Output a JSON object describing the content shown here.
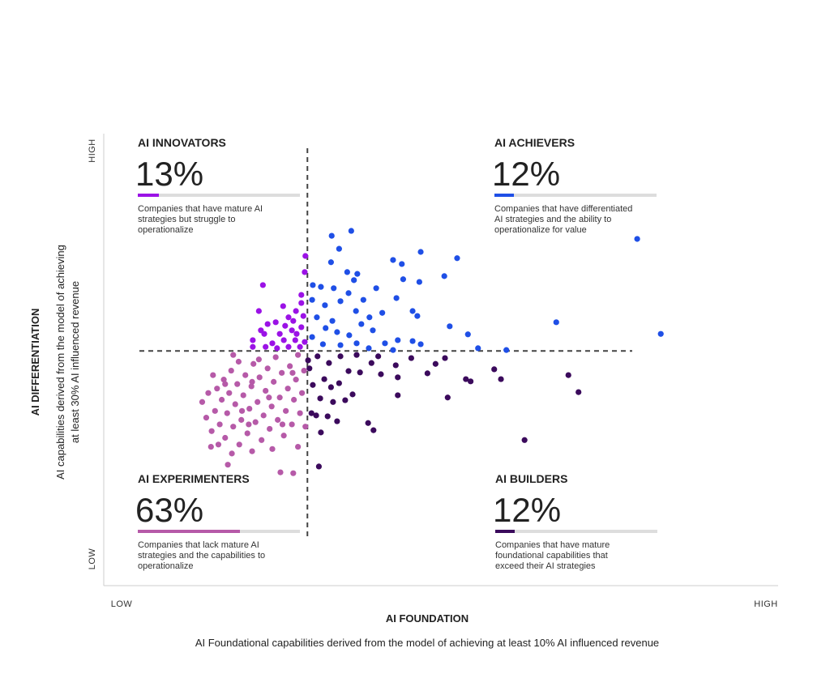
{
  "chart_data": {
    "type": "scatter",
    "y_title": "AI DIFFERENTIATION",
    "y_subtitle": [
      "AI capabilities derived from the model of achieving",
      "at least 30% AI influenced revenue"
    ],
    "x_title": "AI FOUNDATION",
    "x_subtitle": "AI Foundational capabilities derived from the model of achieving at least 10% AI influenced revenue",
    "y_high": "HIGH",
    "y_low": "LOW",
    "x_low": "LOW",
    "x_high": "HIGH",
    "xlim": [
      0,
      100
    ],
    "ylim": [
      0,
      100
    ],
    "quadrant_split": {
      "x": 30.2,
      "y": 52.4
    },
    "series": [
      {
        "name": "AI INNOVATORS",
        "color": "#9b12e6",
        "share": 13,
        "share_label": "13%",
        "description": [
          "Companies that have mature AI",
          "strategies but struggle to",
          "operationalize"
        ],
        "x": [
          29.9,
          29.8,
          23.6,
          29.3,
          23.0,
          26.6,
          28.5,
          29.6,
          27.4,
          25.5,
          23.3,
          22.1,
          23.8,
          26.1,
          27.9,
          29.3,
          25.0,
          26.7,
          28.4,
          29.8,
          22.1,
          24.0,
          25.7,
          27.4,
          29.1,
          29.3,
          28.1,
          24.3,
          26.9,
          28.6
        ],
        "y": [
          73.6,
          70.0,
          67.1,
          64.9,
          61.3,
          62.4,
          61.3,
          60.2,
          59.9,
          58.8,
          57.0,
          54.8,
          56.2,
          56.2,
          57.0,
          57.7,
          54.1,
          54.8,
          54.8,
          54.4,
          53.3,
          53.3,
          53.0,
          53.3,
          53.3,
          63.1,
          59.1,
          58.4,
          58.0,
          56.2
        ]
      },
      {
        "name": "AI ACHIEVERS",
        "color": "#1f4fe6",
        "share": 12,
        "share_label": "12%",
        "description": [
          "Companies that have differentiated",
          "AI strategies and the ability to",
          "operationalize for value"
        ],
        "x": [
          79.1,
          82.6,
          67.1,
          36.7,
          33.8,
          34.9,
          47.0,
          42.9,
          44.2,
          52.4,
          50.5,
          46.8,
          44.4,
          40.4,
          33.7,
          36.1,
          37.6,
          37.1,
          34.1,
          32.2,
          30.9,
          32.8,
          35.1,
          37.4,
          39.4,
          41.3,
          43.4,
          45.8,
          46.5,
          51.3,
          54.0,
          55.5,
          59.7,
          47.0,
          45.8,
          43.6,
          41.7,
          39.9,
          38.2,
          36.4,
          34.6,
          32.9,
          31.6,
          30.9,
          32.5,
          35.1,
          37.5,
          39.3,
          42.9,
          36.3,
          33.9,
          31.0,
          38.5
        ],
        "y": [
          77.4,
          56.2,
          58.8,
          79.2,
          78.1,
          75.2,
          74.5,
          72.7,
          71.8,
          73.1,
          69.1,
          67.8,
          68.4,
          66.4,
          72.2,
          70.0,
          69.6,
          68.2,
          66.4,
          66.7,
          63.8,
          62.6,
          63.5,
          61.3,
          59.9,
          60.9,
          64.2,
          61.3,
          60.2,
          57.9,
          56.1,
          53.0,
          52.6,
          53.9,
          54.6,
          54.8,
          54.1,
          57.0,
          58.4,
          55.9,
          56.6,
          57.5,
          59.9,
          55.5,
          53.9,
          53.7,
          54.1,
          53.0,
          52.6,
          65.3,
          59.1,
          67.1,
          63.8
        ]
      },
      {
        "name": "AI EXPERIMENTERS",
        "color": "#b65aa8",
        "share": 63,
        "share_label": "63%",
        "description": [
          "Companies that lack mature AI",
          "strategies and the capabilities to",
          "operationalize"
        ],
        "x": [
          18.4,
          26.2,
          28.1,
          15.9,
          14.6,
          19.2,
          28.8,
          15.2,
          16.0,
          16.5,
          16.8,
          17.2,
          17.5,
          17.8,
          18.0,
          18.3,
          18.6,
          18.9,
          19.2,
          19.5,
          19.8,
          20.1,
          20.4,
          20.7,
          21.0,
          21.3,
          21.6,
          21.9,
          22.2,
          22.5,
          22.8,
          23.1,
          23.4,
          23.7,
          24.0,
          24.3,
          24.6,
          24.9,
          25.2,
          25.5,
          25.8,
          26.1,
          26.4,
          26.7,
          27.0,
          27.3,
          27.6,
          27.9,
          28.2,
          28.5,
          28.8,
          29.1,
          29.4,
          29.7,
          29.9,
          20.0,
          23.0,
          16.2,
          19.0,
          22.0,
          25.0,
          15.5,
          21.5,
          24.5,
          18.0,
          26.5,
          22.0,
          20.5,
          28.0,
          17.0
        ],
        "y": [
          27.0,
          25.3,
          25.1,
          31.0,
          41.0,
          51.5,
          51.5,
          37.5,
          34.5,
          39.0,
          44.0,
          36.0,
          41.5,
          46.0,
          33.0,
          38.5,
          43.0,
          48.0,
          35.5,
          40.5,
          45.0,
          31.5,
          37.0,
          42.5,
          47.0,
          34.0,
          39.5,
          44.5,
          49.5,
          36.5,
          41.0,
          46.5,
          32.5,
          38.0,
          43.5,
          48.5,
          35.0,
          40.0,
          45.5,
          51.0,
          37.0,
          42.0,
          47.5,
          33.5,
          39.0,
          44.0,
          49.0,
          36.0,
          41.5,
          46.0,
          31.0,
          38.5,
          43.0,
          48.0,
          35.5,
          50.0,
          50.5,
          47.0,
          29.5,
          30.0,
          30.5,
          43.0,
          36.0,
          42.0,
          45.0,
          36.0,
          45.5,
          39.0,
          47.5,
          31.5
        ]
      },
      {
        "name": "AI BUILDERS",
        "color": "#3b0a5c",
        "share": 12,
        "share_label": "12%",
        "description": [
          "Companies that have mature",
          "foundational capabilities that",
          "exceed their AI strategies"
        ],
        "x": [
          62.4,
          70.4,
          68.9,
          58.9,
          57.9,
          53.7,
          54.4,
          51.0,
          49.2,
          48.0,
          43.6,
          43.6,
          43.3,
          40.0,
          39.2,
          40.7,
          38.0,
          36.9,
          34.9,
          34.0,
          33.2,
          32.2,
          31.5,
          31.0,
          30.5,
          31.7,
          33.4,
          35.1,
          36.3,
          37.5,
          39.7,
          41.1,
          33.7,
          35.8,
          32.1,
          30.8,
          31.9,
          34.6,
          32.7,
          30.3,
          45.6,
          50.6
        ],
        "y": [
          32.5,
          43.2,
          47.0,
          46.1,
          48.3,
          46.1,
          45.6,
          42.0,
          49.5,
          47.4,
          42.5,
          46.5,
          49.2,
          34.7,
          36.3,
          51.2,
          47.6,
          42.7,
          45.2,
          41.0,
          37.8,
          34.2,
          38.0,
          44.8,
          48.5,
          51.2,
          49.7,
          51.2,
          47.9,
          51.5,
          49.7,
          47.2,
          44.3,
          41.4,
          41.8,
          38.5,
          26.6,
          36.7,
          46.1,
          50.3,
          50.8,
          50.8
        ]
      }
    ]
  }
}
